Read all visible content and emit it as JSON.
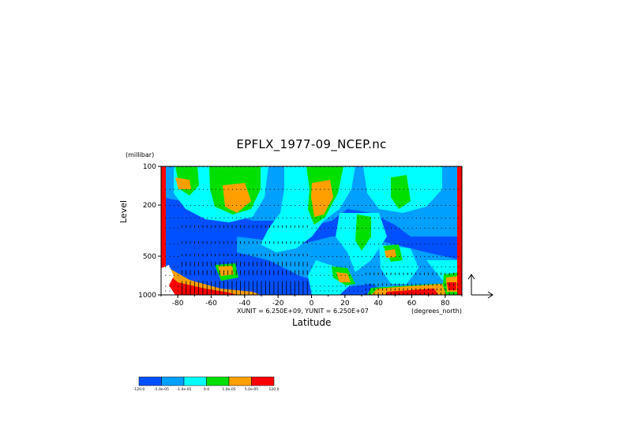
{
  "chart_data": {
    "type": "heatmap",
    "title": "EPFLX_1977-09_NCEP.nc",
    "ylabel": "Level",
    "yunit": "(millibar)",
    "xlabel": "Latitude",
    "xunit_text": "XUNIT = 6.250E+09, YUNIT = 6.250E+07",
    "x_units_label": "(degrees_north)",
    "x_ticks": [
      -80,
      -60,
      -40,
      -20,
      0,
      20,
      40,
      60,
      80
    ],
    "y_ticks": [
      100,
      200,
      500,
      1000
    ],
    "xlim": [
      -90,
      90
    ],
    "ylim": [
      1000,
      100
    ],
    "y_scale": "log",
    "colorbar": {
      "labels": [
        "-120.0",
        "-5.0e-05",
        "-1.0e-05",
        "0.0",
        "1.0e-05",
        "5.0e-05",
        "120.0"
      ],
      "colors": [
        "#0050ff",
        "#00a0ff",
        "#00ffff",
        "#00e000",
        "#ffa000",
        "#ff0000"
      ]
    },
    "vectors": "on"
  }
}
